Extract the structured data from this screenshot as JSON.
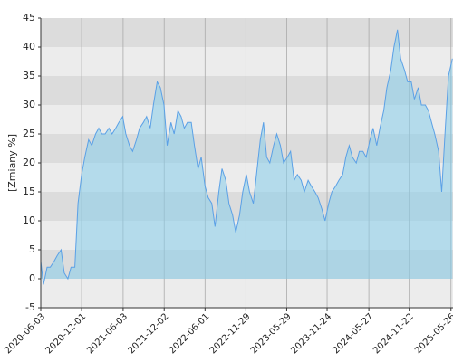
{
  "chart_data": {
    "type": "area",
    "y_label": "[Zmiany %]",
    "x": [
      "2020-06-03",
      "2020-06-15",
      "2020-07-01",
      "2020-07-15",
      "2020-08-01",
      "2020-08-15",
      "2020-09-01",
      "2020-09-15",
      "2020-10-01",
      "2020-10-15",
      "2020-11-01",
      "2020-11-15",
      "2020-12-01",
      "2020-12-15",
      "2021-01-01",
      "2021-01-15",
      "2021-02-01",
      "2021-02-15",
      "2021-03-01",
      "2021-03-15",
      "2021-04-01",
      "2021-04-15",
      "2021-05-01",
      "2021-05-15",
      "2021-06-01",
      "2021-06-15",
      "2021-07-01",
      "2021-07-15",
      "2021-08-01",
      "2021-08-15",
      "2021-09-01",
      "2021-09-15",
      "2021-10-01",
      "2021-10-15",
      "2021-11-01",
      "2021-11-15",
      "2021-12-01",
      "2021-12-15",
      "2022-01-01",
      "2022-01-15",
      "2022-02-01",
      "2022-02-15",
      "2022-03-01",
      "2022-03-15",
      "2022-04-01",
      "2022-04-15",
      "2022-05-01",
      "2022-05-15",
      "2022-06-01",
      "2022-06-15",
      "2022-07-01",
      "2022-07-15",
      "2022-08-01",
      "2022-08-15",
      "2022-09-01",
      "2022-09-15",
      "2022-10-01",
      "2022-10-15",
      "2022-11-01",
      "2022-11-15",
      "2022-12-01",
      "2022-12-15",
      "2023-01-01",
      "2023-01-15",
      "2023-02-01",
      "2023-02-15",
      "2023-03-01",
      "2023-03-15",
      "2023-04-01",
      "2023-04-15",
      "2023-05-01",
      "2023-05-15",
      "2023-06-01",
      "2023-06-15",
      "2023-07-01",
      "2023-07-15",
      "2023-08-01",
      "2023-08-15",
      "2023-09-01",
      "2023-09-15",
      "2023-10-01",
      "2023-10-15",
      "2023-11-01",
      "2023-11-15",
      "2023-12-01",
      "2023-12-15",
      "2024-01-01",
      "2024-01-15",
      "2024-02-01",
      "2024-02-15",
      "2024-03-01",
      "2024-03-15",
      "2024-04-01",
      "2024-04-15",
      "2024-05-01",
      "2024-05-15",
      "2024-06-01",
      "2024-06-15",
      "2024-07-01",
      "2024-07-15",
      "2024-08-01",
      "2024-08-15",
      "2024-09-01",
      "2024-09-15",
      "2024-10-01",
      "2024-10-15",
      "2024-11-01",
      "2024-11-15",
      "2024-12-01",
      "2024-12-15",
      "2025-01-01",
      "2025-01-15",
      "2025-02-01",
      "2025-02-15",
      "2025-03-01",
      "2025-03-15",
      "2025-04-01",
      "2025-04-15",
      "2025-05-01",
      "2025-05-15",
      "2025-06-01"
    ],
    "values": [
      3,
      -1,
      2,
      2,
      3,
      4,
      5,
      1,
      0,
      2,
      2,
      13,
      18,
      21,
      24,
      23,
      25,
      26,
      25,
      25,
      26,
      25,
      26,
      27,
      28,
      25,
      23,
      22,
      24,
      26,
      27,
      28,
      26,
      30,
      34,
      33,
      30,
      23,
      27,
      25,
      29,
      28,
      26,
      27,
      27,
      23,
      19,
      21,
      16,
      14,
      13,
      9,
      15,
      19,
      17,
      13,
      11,
      8,
      11,
      15,
      18,
      15,
      13,
      18,
      24,
      27,
      21,
      20,
      23,
      25,
      23,
      20,
      21,
      22,
      17,
      18,
      17,
      15,
      17,
      16,
      15,
      14,
      12,
      10,
      13,
      15,
      16,
      17,
      18,
      21,
      23,
      21,
      20,
      22,
      22,
      21,
      24,
      26,
      23,
      26,
      29,
      33,
      36,
      40,
      43,
      38,
      36,
      34,
      34,
      31,
      33,
      30,
      30,
      29,
      27,
      25,
      22,
      15,
      26,
      35,
      38
    ],
    "color": "#5aa0e6",
    "xlim": [
      "2020-06-03",
      "2025-06-04"
    ],
    "xticks": [
      "2020-06-03",
      "2020-12-01",
      "2021-06-03",
      "2021-12-02",
      "2022-06-01",
      "2022-11-29",
      "2023-05-29",
      "2023-11-24",
      "2024-05-27",
      "2024-11-22",
      "2025-05-26"
    ],
    "ylim": [
      -5,
      45
    ],
    "yticks": [
      -5,
      0,
      5,
      10,
      15,
      20,
      25,
      30,
      35,
      40,
      45
    ],
    "grid": true
  }
}
